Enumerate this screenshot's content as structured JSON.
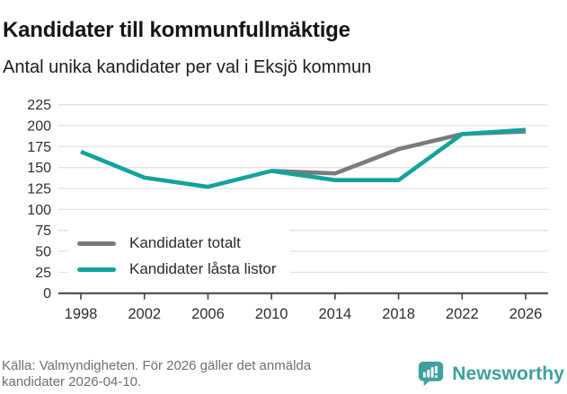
{
  "header": {
    "title": "Kandidater till kommunfullmäktige",
    "subtitle": "Antal unika kandidater per val i Eksjö kommun"
  },
  "chart_data": {
    "type": "line",
    "title": "Kandidater till kommunfullmäktige",
    "subtitle": "Antal unika kandidater per val i Eksjö kommun",
    "x": [
      1998,
      2002,
      2006,
      2010,
      2014,
      2018,
      2022,
      2026
    ],
    "series": [
      {
        "name": "Kandidater totalt",
        "color": "#7b7b7b",
        "x": [
          2010,
          2014,
          2018,
          2022,
          2026
        ],
        "values": [
          146,
          143,
          172,
          190,
          193
        ]
      },
      {
        "name": "Kandidater låsta listor",
        "color": "#14a29a",
        "x": [
          1998,
          2002,
          2006,
          2010,
          2014,
          2018,
          2022,
          2026
        ],
        "values": [
          169,
          138,
          127,
          146,
          135,
          135,
          190,
          195
        ]
      }
    ],
    "xlabel": "",
    "ylabel": "",
    "ylim": [
      0,
      225
    ],
    "ytick_step": 25,
    "yticks": [
      0,
      25,
      50,
      75,
      100,
      125,
      150,
      175,
      200,
      225
    ],
    "grid": true,
    "legend_position": "lower-left",
    "colors": {
      "gridline": "#e3e3e3",
      "axis": "#3f3f3f",
      "tick_label": "#2e2e2e"
    }
  },
  "footer": {
    "source_lines": [
      "Källa: Valmyndigheten. För 2026 gäller det anmälda",
      "kandidater 2026-04-10."
    ]
  },
  "branding": {
    "name": "Newsworthy",
    "color": "#3fa09d"
  }
}
